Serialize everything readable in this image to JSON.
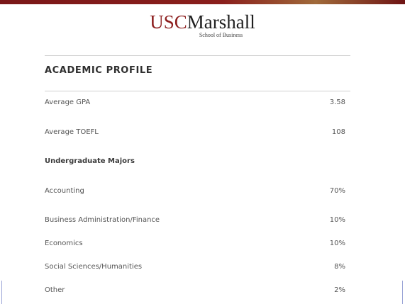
{
  "logo": {
    "usc": "USC",
    "marshall": "Marshall",
    "subtitle": "School of Business"
  },
  "section_title": "ACADEMIC PROFILE",
  "stats": [
    {
      "label": "Average GPA",
      "value": "3.58"
    },
    {
      "label": "Average TOEFL",
      "value": "108"
    }
  ],
  "majors_heading": "Undergraduate Majors",
  "majors": [
    {
      "label": "Accounting",
      "value": "70%"
    },
    {
      "label": "Business Administration/Finance",
      "value": "10%"
    },
    {
      "label": "Economics",
      "value": "10%"
    },
    {
      "label": "Social Sciences/Humanities",
      "value": "8%"
    },
    {
      "label": "Other",
      "value": "2%"
    }
  ],
  "colors": {
    "brand_cardinal": "#8c1d1d",
    "text": "#555555",
    "rule": "#cfcfcf"
  }
}
